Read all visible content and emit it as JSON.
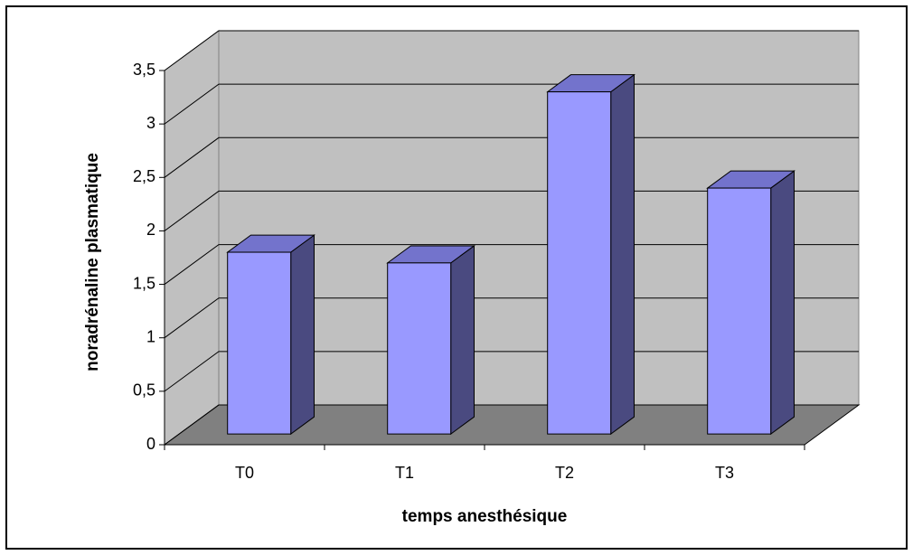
{
  "chart_data": {
    "type": "bar3d",
    "x_label": "temps anesthésique",
    "y_label": "noradrénaline plasmatique",
    "categories": [
      "T0",
      "T1",
      "T2",
      "T3"
    ],
    "values": [
      1.7,
      1.6,
      3.2,
      2.3
    ],
    "color": "#9999ff",
    "ylim": [
      0,
      3.5
    ],
    "yticks": [
      0,
      {
        "value": 0.5,
        "label": "0,5"
      },
      1,
      {
        "value": 1.5,
        "label": "1,5"
      },
      2,
      {
        "value": 2.5,
        "label": "2,5"
      },
      3,
      {
        "value": 3.5,
        "label": "3,5"
      }
    ],
    "grid": true
  }
}
